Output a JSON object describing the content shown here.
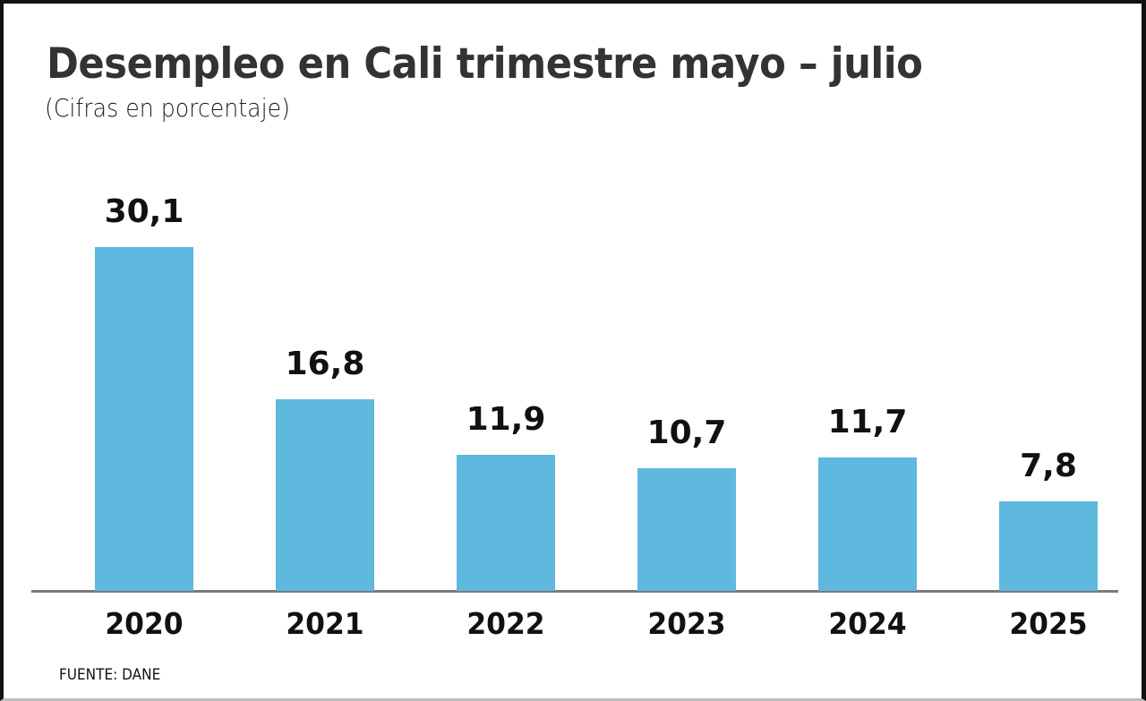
{
  "header": {
    "title": "Desempleo en Cali trimestre mayo – julio",
    "subtitle": "(Cifras en porcentaje)"
  },
  "footer": {
    "source": "FUENTE: DANE"
  },
  "colors": {
    "bar": "#5fb8dd",
    "baseline": "#7a7a7a",
    "title": "#333333",
    "labels": "#111111"
  },
  "bars": [
    {
      "year": "2020",
      "label": "30,1",
      "value": 30.1
    },
    {
      "year": "2021",
      "label": "16,8",
      "value": 16.8
    },
    {
      "year": "2022",
      "label": "11,9",
      "value": 11.9
    },
    {
      "year": "2023",
      "label": "10,7",
      "value": 10.7
    },
    {
      "year": "2024",
      "label": "11,7",
      "value": 11.7
    },
    {
      "year": "2025",
      "label": "7,8",
      "value": 7.8
    }
  ],
  "chart_data": {
    "type": "bar",
    "title": "Desempleo en Cali trimestre mayo – julio",
    "subtitle": "(Cifras en porcentaje)",
    "categories": [
      "2020",
      "2021",
      "2022",
      "2023",
      "2024",
      "2025"
    ],
    "values": [
      30.1,
      16.8,
      11.9,
      10.7,
      11.7,
      7.8
    ],
    "data_labels": [
      "30,1",
      "16,8",
      "11,9",
      "10,7",
      "11,7",
      "7,8"
    ],
    "xlabel": "",
    "ylabel": "",
    "ylim": [
      0,
      30.1
    ],
    "grid": false,
    "legend": null,
    "source": "FUENTE: DANE"
  }
}
